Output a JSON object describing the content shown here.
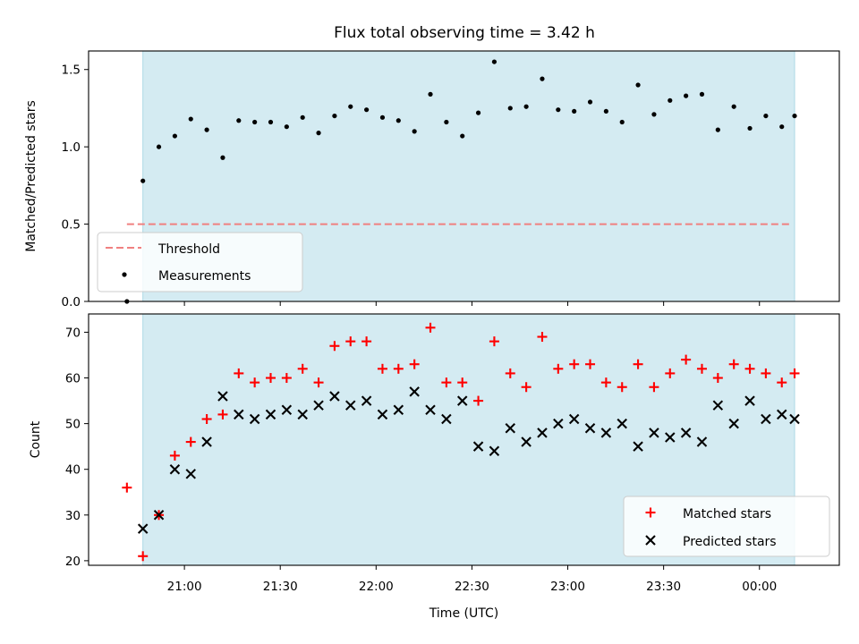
{
  "chart_data": {
    "type": "scatter",
    "title": "Flux total observing time = 3.42 h",
    "xlabel": "Time (UTC)",
    "x_tick_labels": [
      "21:00",
      "21:30",
      "22:00",
      "22:30",
      "23:00",
      "23:30",
      "00:00"
    ],
    "observing_window": [
      "20:47",
      "00:11"
    ],
    "colors": {
      "shade": "#d4ebf2",
      "shade_edge": "#add8e6",
      "threshold": "#f08080",
      "measurement": "#000000",
      "matched": "#ff0000",
      "predicted": "#000000"
    },
    "times": [
      "20:42",
      "20:47",
      "20:52",
      "20:57",
      "21:02",
      "21:07",
      "21:12",
      "21:17",
      "21:22",
      "21:27",
      "21:32",
      "21:37",
      "21:42",
      "21:47",
      "21:52",
      "21:57",
      "22:02",
      "22:07",
      "22:12",
      "22:17",
      "22:22",
      "22:27",
      "22:32",
      "22:37",
      "22:42",
      "22:47",
      "22:52",
      "22:57",
      "23:02",
      "23:07",
      "23:12",
      "23:17",
      "23:22",
      "23:27",
      "23:32",
      "23:37",
      "23:42",
      "23:47",
      "23:52",
      "23:57",
      "00:02",
      "00:07",
      "00:11"
    ],
    "top": {
      "ylabel": "Matched/Predicted stars",
      "ylim": [
        0,
        1.62
      ],
      "y_ticks": [
        "0.0",
        "0.5",
        "1.0",
        "1.5"
      ],
      "threshold": 0.5,
      "legend": [
        "Threshold",
        "Measurements"
      ],
      "legend_position": "lower-left",
      "measurements": [
        0.0,
        0.78,
        1.0,
        1.07,
        1.18,
        1.11,
        0.93,
        1.17,
        1.16,
        1.16,
        1.13,
        1.19,
        1.09,
        1.2,
        1.26,
        1.24,
        1.19,
        1.17,
        1.1,
        1.34,
        1.16,
        1.07,
        1.22,
        1.55,
        1.25,
        1.26,
        1.44,
        1.24,
        1.23,
        1.29,
        1.23,
        1.16,
        1.4,
        1.21,
        1.3,
        1.33,
        1.34,
        1.11,
        1.26,
        1.12,
        1.2,
        1.13,
        1.2
      ]
    },
    "bottom": {
      "ylabel": "Count",
      "ylim": [
        19,
        74
      ],
      "y_ticks": [
        "20",
        "30",
        "40",
        "50",
        "60",
        "70"
      ],
      "legend": [
        "Matched stars",
        "Predicted stars"
      ],
      "legend_position": "lower-right",
      "matched": [
        36,
        21,
        30,
        43,
        46,
        51,
        52,
        61,
        59,
        60,
        60,
        62,
        59,
        67,
        68,
        68,
        62,
        62,
        63,
        71,
        59,
        59,
        55,
        68,
        61,
        58,
        69,
        62,
        63,
        63,
        59,
        58,
        63,
        58,
        61,
        64,
        62,
        60,
        63,
        62,
        61,
        59,
        61
      ],
      "predicted": [
        null,
        27,
        30,
        40,
        39,
        46,
        56,
        52,
        51,
        52,
        53,
        52,
        54,
        56,
        54,
        55,
        52,
        53,
        57,
        53,
        51,
        55,
        45,
        44,
        49,
        46,
        48,
        50,
        51,
        49,
        48,
        50,
        45,
        48,
        47,
        48,
        46,
        54,
        50,
        55,
        51,
        52,
        51
      ]
    }
  }
}
